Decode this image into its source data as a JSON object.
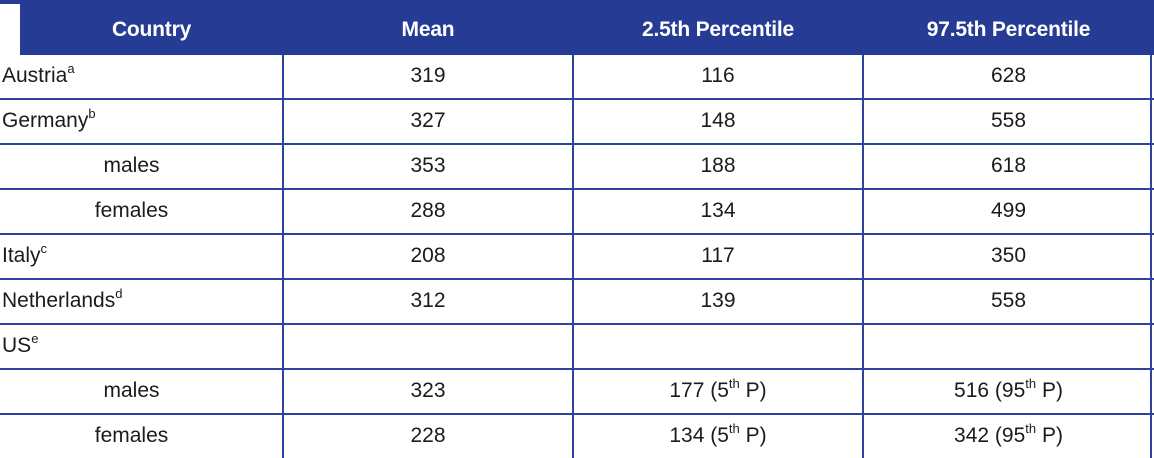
{
  "colors": {
    "header_bg": "#263c94",
    "border": "#2e42a0",
    "header_text": "#ffffff",
    "body_text": "#1b1b1b"
  },
  "header": {
    "columns": [
      "Country",
      "Mean",
      "2.5th Percentile",
      "97.5th Percentile"
    ]
  },
  "rows": [
    {
      "label": "Austria",
      "label_sup": "a",
      "mean": "319",
      "p2_5": "116",
      "p2_5_sup": "",
      "p2_5_post": "",
      "p97_5": "628",
      "p97_5_sup": "",
      "p97_5_post": ""
    },
    {
      "label": "Germany",
      "label_sup": "b",
      "mean": "327",
      "p2_5": "148",
      "p2_5_sup": "",
      "p2_5_post": "",
      "p97_5": "558",
      "p97_5_sup": "",
      "p97_5_post": ""
    },
    {
      "label": "males",
      "label_sup": "",
      "mean": "353",
      "p2_5": "188",
      "p2_5_sup": "",
      "p2_5_post": "",
      "p97_5": "618",
      "p97_5_sup": "",
      "p97_5_post": ""
    },
    {
      "label": "females",
      "label_sup": "",
      "mean": "288",
      "p2_5": "134",
      "p2_5_sup": "",
      "p2_5_post": "",
      "p97_5": "499",
      "p97_5_sup": "",
      "p97_5_post": ""
    },
    {
      "label": "Italy",
      "label_sup": "c",
      "mean": "208",
      "p2_5": "117",
      "p2_5_sup": "",
      "p2_5_post": "",
      "p97_5": "350",
      "p97_5_sup": "",
      "p97_5_post": ""
    },
    {
      "label": "Netherlands",
      "label_sup": "d",
      "mean": "312",
      "p2_5": "139",
      "p2_5_sup": "",
      "p2_5_post": "",
      "p97_5": "558",
      "p97_5_sup": "",
      "p97_5_post": ""
    },
    {
      "label": "US",
      "label_sup": "e",
      "mean": "",
      "p2_5": "",
      "p2_5_sup": "",
      "p2_5_post": "",
      "p97_5": "",
      "p97_5_sup": "",
      "p97_5_post": ""
    },
    {
      "label": "males",
      "label_sup": "",
      "mean": "323",
      "p2_5": "177 (5",
      "p2_5_sup": "th",
      "p2_5_post": " P)",
      "p97_5": "516 (95",
      "p97_5_sup": "th",
      "p97_5_post": " P)"
    },
    {
      "label": "females",
      "label_sup": "",
      "mean": "228",
      "p2_5": "134 (5",
      "p2_5_sup": "th",
      "p2_5_post": " P)",
      "p97_5": "342 (95",
      "p97_5_sup": "th",
      "p97_5_post": " P)"
    }
  ]
}
